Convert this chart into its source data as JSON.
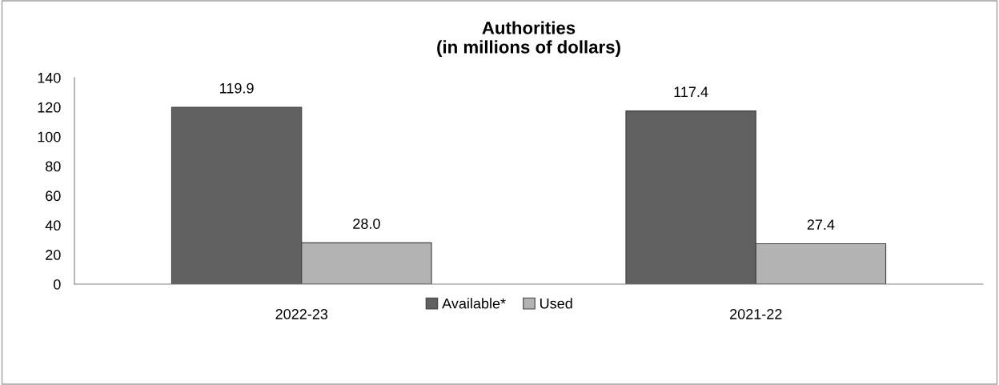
{
  "chart_data": {
    "type": "bar",
    "title": "Authorities\n(in millions of dollars)",
    "categories": [
      "2022-23",
      "2021-22"
    ],
    "series": [
      {
        "name": "Available*",
        "color": "#606060",
        "values": [
          119.9,
          117.4
        ],
        "value_labels": [
          "119.9",
          "117.4"
        ]
      },
      {
        "name": "Used",
        "color": "#b3b3b3",
        "values": [
          28.0,
          27.4
        ],
        "value_labels": [
          "28.0",
          "27.4"
        ]
      }
    ],
    "ylim": [
      0,
      140
    ],
    "yticks": [
      0,
      20,
      40,
      60,
      80,
      100,
      120,
      140
    ],
    "grid": false,
    "legend": "bottom"
  }
}
